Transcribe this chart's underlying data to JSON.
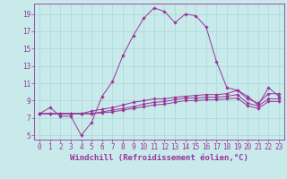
{
  "title": "",
  "xlabel": "Windchill (Refroidissement éolien,°C)",
  "background_color": "#c8eaea",
  "grid_color": "#a8d8d8",
  "line_color": "#993399",
  "x_hours": [
    0,
    1,
    2,
    3,
    4,
    5,
    6,
    7,
    8,
    9,
    10,
    11,
    12,
    13,
    14,
    15,
    16,
    17,
    18,
    19,
    20,
    21,
    22,
    23
  ],
  "series1": [
    7.5,
    8.2,
    7.2,
    7.2,
    5.0,
    6.5,
    9.5,
    11.2,
    14.2,
    16.5,
    18.5,
    19.7,
    19.3,
    18.0,
    19.0,
    18.8,
    17.5,
    13.5,
    10.5,
    10.2,
    9.5,
    8.5,
    10.5,
    9.5
  ],
  "series2": [
    7.5,
    7.5,
    7.5,
    7.5,
    7.5,
    7.8,
    8.0,
    8.2,
    8.5,
    8.8,
    9.0,
    9.2,
    9.2,
    9.4,
    9.5,
    9.6,
    9.7,
    9.7,
    9.8,
    10.2,
    9.2,
    8.7,
    9.8,
    9.8
  ],
  "series3": [
    7.5,
    7.5,
    7.5,
    7.5,
    7.5,
    7.5,
    7.7,
    7.9,
    8.1,
    8.3,
    8.6,
    8.8,
    8.9,
    9.1,
    9.3,
    9.3,
    9.4,
    9.4,
    9.5,
    9.7,
    8.7,
    8.4,
    9.2,
    9.2
  ],
  "series4": [
    7.5,
    7.5,
    7.5,
    7.5,
    7.5,
    7.5,
    7.6,
    7.7,
    7.9,
    8.1,
    8.3,
    8.5,
    8.6,
    8.8,
    9.0,
    9.0,
    9.1,
    9.1,
    9.2,
    9.3,
    8.4,
    8.1,
    8.9,
    8.9
  ],
  "ylim": [
    4.5,
    20.2
  ],
  "yticks": [
    5,
    7,
    9,
    11,
    13,
    15,
    17,
    19
  ],
  "xticks": [
    0,
    1,
    2,
    3,
    4,
    5,
    6,
    7,
    8,
    9,
    10,
    11,
    12,
    13,
    14,
    15,
    16,
    17,
    18,
    19,
    20,
    21,
    22,
    23
  ],
  "tick_fontsize": 5.5,
  "xlabel_fontsize": 6.5,
  "lw": 0.7,
  "ms": 1.8
}
